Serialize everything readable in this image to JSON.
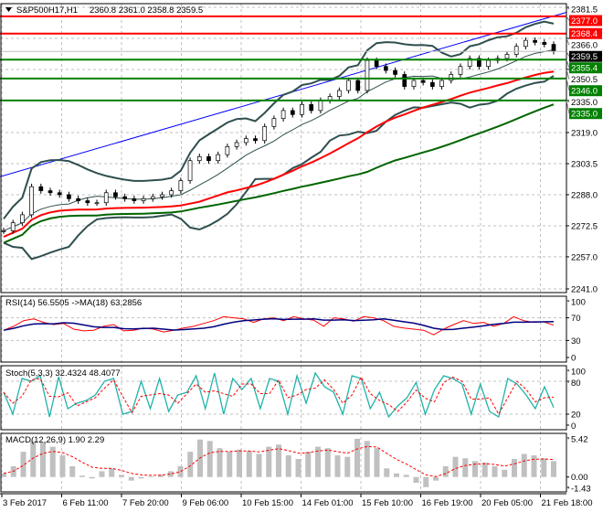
{
  "header": {
    "symbol": "S&P500H17,H1",
    "ohlc": "2360.8 2361.0 2358.8 2359.5"
  },
  "chart_data": [
    {
      "type": "candlestick",
      "name": "price",
      "ylim": [
        2241.0,
        2381.5
      ],
      "yticks": [
        "2381.5",
        "2366.0",
        "2350.5",
        "2335.0",
        "2319.0",
        "2303.5",
        "2288.0",
        "2272.5",
        "2257.0",
        "2241.0"
      ],
      "closes": [
        2270,
        2274,
        2278,
        2292,
        2290,
        2289,
        2288,
        2286,
        2285,
        2284,
        2284,
        2289,
        2287,
        2286,
        2285,
        2286,
        2287,
        2288,
        2290,
        2295,
        2305,
        2307,
        2305,
        2308,
        2312,
        2314,
        2316,
        2315,
        2322,
        2326,
        2330,
        2328,
        2333,
        2330,
        2335,
        2337,
        2340,
        2345,
        2340,
        2355,
        2352,
        2350,
        2348,
        2342,
        2345,
        2344,
        2342,
        2345,
        2348,
        2352,
        2356,
        2352,
        2355,
        2356,
        2358,
        2362,
        2365,
        2364,
        2363,
        2359.5
      ],
      "levels": [
        {
          "value": 2377.0,
          "label": "2377.0",
          "color": "#ff0000"
        },
        {
          "value": 2368.4,
          "label": "2368.4",
          "color": "#ff0000"
        },
        {
          "value": 2355.4,
          "label": "2355.4",
          "color": "#008000"
        },
        {
          "value": 2346.0,
          "label": "2346.0",
          "color": "#008000"
        },
        {
          "value": 2335.0,
          "label": "2335.0",
          "color": "#008000"
        }
      ],
      "current": {
        "value": 2359.5,
        "label": "2359.5"
      },
      "trendline": {
        "from": 2297,
        "to": 2379,
        "color": "#0000ff"
      },
      "ma_fast_color": "#ff0000",
      "ma_slow_color": "#006400",
      "bands_color": "#2f4f4f"
    },
    {
      "type": "line",
      "name": "rsi",
      "title": "RSI(14) 56.5505  ->MA(18) 63.2856",
      "ylim": [
        0,
        100
      ],
      "levels": [
        70,
        30
      ],
      "yticks": [
        "100",
        "70",
        "30",
        "0"
      ],
      "values": [
        48,
        55,
        65,
        68,
        62,
        58,
        60,
        50,
        47,
        48,
        55,
        58,
        47,
        48,
        52,
        50,
        45,
        48,
        52,
        55,
        60,
        65,
        72,
        70,
        68,
        62,
        68,
        70,
        65,
        72,
        68,
        66,
        55,
        70,
        68,
        64,
        72,
        70,
        65,
        55,
        52,
        50,
        48,
        40,
        50,
        58,
        65,
        60,
        62,
        55,
        60,
        72,
        65,
        62,
        63,
        57
      ],
      "color": "#ff0000",
      "ma_color": "#000080"
    },
    {
      "type": "line",
      "name": "stochastic",
      "title": "Stoch(5,3,3) 32.4324 48.4077",
      "ylim": [
        0,
        100
      ],
      "levels": [
        80,
        20
      ],
      "yticks": [
        "100",
        "80",
        "20",
        "0"
      ],
      "values": [
        60,
        20,
        85,
        80,
        90,
        15,
        88,
        30,
        40,
        45,
        55,
        80,
        85,
        20,
        25,
        80,
        30,
        85,
        25,
        55,
        60,
        90,
        30,
        95,
        20,
        85,
        65,
        85,
        30,
        85,
        80,
        20,
        90,
        40,
        95,
        70,
        60,
        20,
        90,
        85,
        30,
        60,
        15,
        35,
        50,
        78,
        20,
        65,
        90,
        85,
        75,
        20,
        75,
        25,
        15,
        85,
        75,
        55,
        30,
        70,
        32
      ],
      "color": "#20b2aa",
      "signal_color": "#ff0000"
    },
    {
      "type": "bar",
      "name": "macd",
      "title": "MACD(12,26,9) 1.90 2.29",
      "ylim": [
        -1.43,
        5.42
      ],
      "yticks": [
        "5.42",
        "0.00",
        "-1.43"
      ],
      "values": [
        0.5,
        1.5,
        3.5,
        5.0,
        4.8,
        4.2,
        3.0,
        1.5,
        0.2,
        -0.2,
        0.8,
        1.2,
        0.3,
        -0.5,
        -0.2,
        0.1,
        0.3,
        0.8,
        1.5,
        3.5,
        5.2,
        5.0,
        4.0,
        3.5,
        3.8,
        3.6,
        3.2,
        4.2,
        4.5,
        3.0,
        2.5,
        3.5,
        4.2,
        4.0,
        3.0,
        2.8,
        5.3,
        5.0,
        4.0,
        1.2,
        0.5,
        0.3,
        -0.8,
        -1.4,
        -0.5,
        1.5,
        2.8,
        2.6,
        2.2,
        2.0,
        1.5,
        1.0,
        2.5,
        3.2,
        3.0,
        2.6,
        2.2
      ],
      "hist_color": "#c0c0c0",
      "signal_color": "#ff0000"
    }
  ],
  "time_axis": [
    "3 Feb 2017",
    "6 Feb 11:00",
    "7 Feb 20:00",
    "9 Feb 06:00",
    "10 Feb 15:00",
    "14 Feb 01:00",
    "15 Feb 10:00",
    "16 Feb 19:00",
    "20 Feb 05:00",
    "21 Feb 18:00"
  ]
}
